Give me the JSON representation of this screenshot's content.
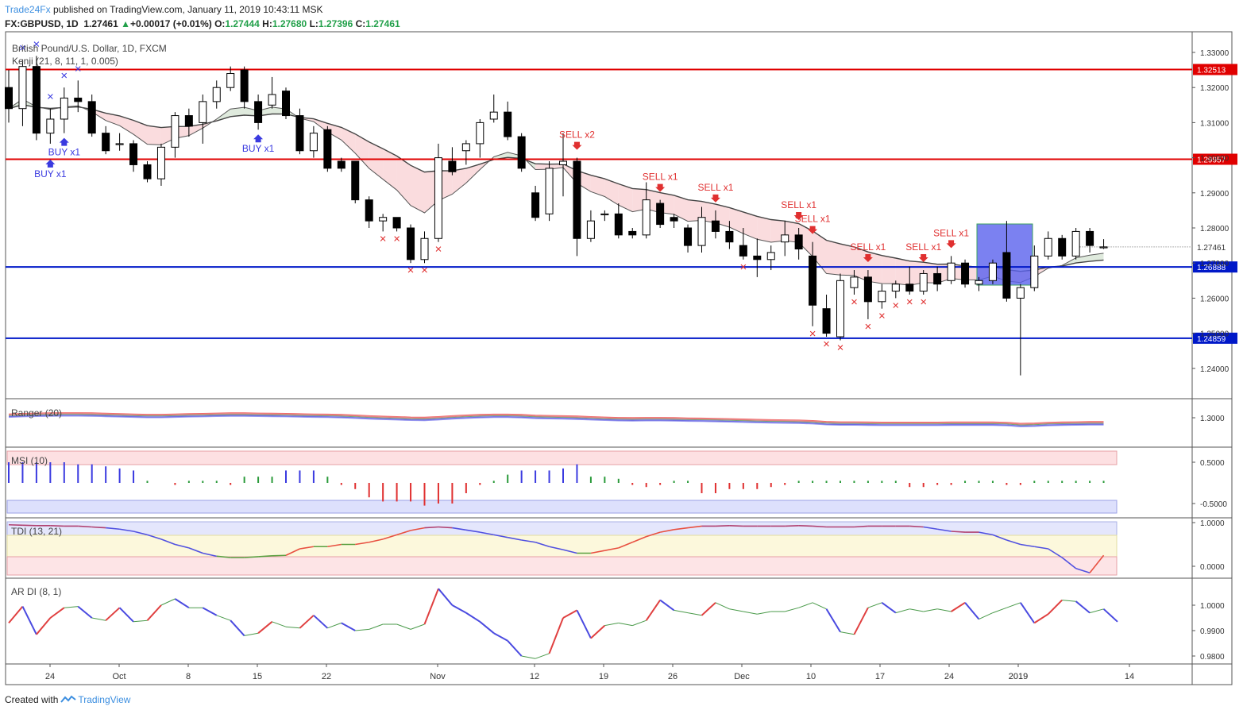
{
  "header": {
    "brand": "Trade24Fx",
    "published": "published on TradingView.com, January 11, 2019 10:43:11 MSK",
    "symbol": "FX:GBPUSD, 1D",
    "last": "1.27461",
    "arrow": "▲",
    "change": "+0.00017 (+0.01%)",
    "o_label": "O:",
    "o": "1.27444",
    "h_label": "H:",
    "h": "1.27680",
    "l_label": "L:",
    "l": "1.27396",
    "c_label": "C:",
    "c": "1.27461"
  },
  "footer": {
    "created_with": "Created with",
    "tradingview": "TradingView"
  },
  "colors": {
    "up": "#ffffff",
    "down": "#000000",
    "red_line": "#e00000",
    "blue_line": "#0018c8",
    "sell": "#e03030",
    "buy": "#3a3ae0"
  },
  "chart_data": [
    {
      "type": "candlestick",
      "title": "British Pound/U.S. Dollar, 1D, FXCM",
      "indicator": "Kenji (21, 8, 11, 1, 0.005)",
      "x_ticks": [
        "24",
        "Oct",
        "8",
        "15",
        "22",
        "Nov",
        "12",
        "19",
        "26",
        "Dec",
        "10",
        "17",
        "24",
        "2019",
        "14"
      ],
      "y_ticks": [
        "1.33000",
        "1.32000",
        "1.31000",
        "1.30000",
        "1.29000",
        "1.28000",
        "1.27000",
        "1.26000",
        "1.25000",
        "1.24000"
      ],
      "ylim": [
        1.2315,
        1.3355
      ],
      "horizontal_levels": [
        {
          "value": 1.32513,
          "label": "1.32513",
          "color": "red"
        },
        {
          "value": 1.29957,
          "label": "1.29957",
          "color": "red"
        },
        {
          "value": 1.26888,
          "label": "1.26888",
          "color": "blue"
        },
        {
          "value": 1.24859,
          "label": "1.24859",
          "color": "blue"
        }
      ],
      "last_price_label": "1.27461",
      "candles": [
        [
          1.32,
          1.325,
          1.31,
          1.314
        ],
        [
          1.314,
          1.328,
          1.309,
          1.326
        ],
        [
          1.326,
          1.329,
          1.305,
          1.307
        ],
        [
          1.307,
          1.314,
          1.304,
          1.311
        ],
        [
          1.311,
          1.32,
          1.307,
          1.317
        ],
        [
          1.317,
          1.322,
          1.313,
          1.316
        ],
        [
          1.316,
          1.318,
          1.306,
          1.307
        ],
        [
          1.307,
          1.309,
          1.301,
          1.302
        ],
        [
          1.304,
          1.307,
          1.302,
          1.304
        ],
        [
          1.304,
          1.305,
          1.296,
          1.298
        ],
        [
          1.298,
          1.299,
          1.293,
          1.294
        ],
        [
          1.294,
          1.304,
          1.292,
          1.303
        ],
        [
          1.303,
          1.313,
          1.3,
          1.312
        ],
        [
          1.312,
          1.314,
          1.306,
          1.309
        ],
        [
          1.31,
          1.318,
          1.304,
          1.316
        ],
        [
          1.316,
          1.322,
          1.314,
          1.32
        ],
        [
          1.32,
          1.326,
          1.319,
          1.324
        ],
        [
          1.325,
          1.326,
          1.314,
          1.316
        ],
        [
          1.316,
          1.318,
          1.308,
          1.31
        ],
        [
          1.315,
          1.323,
          1.314,
          1.318
        ],
        [
          1.319,
          1.32,
          1.311,
          1.312
        ],
        [
          1.312,
          1.314,
          1.301,
          1.302
        ],
        [
          1.302,
          1.309,
          1.3,
          1.307
        ],
        [
          1.308,
          1.309,
          1.296,
          1.297
        ],
        [
          1.299,
          1.3,
          1.296,
          1.297
        ],
        [
          1.299,
          1.299,
          1.287,
          1.288
        ],
        [
          1.288,
          1.289,
          1.28,
          1.282
        ],
        [
          1.282,
          1.284,
          1.279,
          1.283
        ],
        [
          1.283,
          1.283,
          1.279,
          1.28
        ],
        [
          1.28,
          1.281,
          1.27,
          1.271
        ],
        [
          1.271,
          1.279,
          1.27,
          1.277
        ],
        [
          1.277,
          1.304,
          1.276,
          1.3
        ],
        [
          1.299,
          1.303,
          1.295,
          1.296
        ],
        [
          1.302,
          1.305,
          1.298,
          1.304
        ],
        [
          1.304,
          1.311,
          1.3,
          1.31
        ],
        [
          1.311,
          1.318,
          1.31,
          1.313
        ],
        [
          1.313,
          1.316,
          1.305,
          1.306
        ],
        [
          1.306,
          1.307,
          1.296,
          1.297
        ],
        [
          1.29,
          1.292,
          1.282,
          1.283
        ],
        [
          1.284,
          1.299,
          1.282,
          1.297
        ],
        [
          1.298,
          1.307,
          1.289,
          1.299
        ],
        [
          1.299,
          1.3,
          1.272,
          1.277
        ],
        [
          1.277,
          1.285,
          1.276,
          1.282
        ],
        [
          1.284,
          1.285,
          1.282,
          1.284
        ],
        [
          1.284,
          1.287,
          1.277,
          1.278
        ],
        [
          1.279,
          1.28,
          1.277,
          1.278
        ],
        [
          1.278,
          1.293,
          1.277,
          1.288
        ],
        [
          1.287,
          1.288,
          1.28,
          1.281
        ],
        [
          1.283,
          1.284,
          1.28,
          1.282
        ],
        [
          1.28,
          1.281,
          1.273,
          1.275
        ],
        [
          1.275,
          1.286,
          1.273,
          1.283
        ],
        [
          1.282,
          1.285,
          1.277,
          1.279
        ],
        [
          1.279,
          1.282,
          1.274,
          1.276
        ],
        [
          1.275,
          1.28,
          1.271,
          1.272
        ],
        [
          1.272,
          1.277,
          1.266,
          1.271
        ],
        [
          1.271,
          1.275,
          1.268,
          1.273
        ],
        [
          1.276,
          1.282,
          1.272,
          1.278
        ],
        [
          1.278,
          1.28,
          1.271,
          1.274
        ],
        [
          1.272,
          1.276,
          1.252,
          1.258
        ],
        [
          1.257,
          1.261,
          1.249,
          1.25
        ],
        [
          1.249,
          1.267,
          1.248,
          1.265
        ],
        [
          1.263,
          1.268,
          1.261,
          1.266
        ],
        [
          1.266,
          1.268,
          1.254,
          1.259
        ],
        [
          1.259,
          1.264,
          1.257,
          1.262
        ],
        [
          1.262,
          1.265,
          1.26,
          1.264
        ],
        [
          1.264,
          1.269,
          1.261,
          1.262
        ],
        [
          1.262,
          1.268,
          1.261,
          1.267
        ],
        [
          1.267,
          1.269,
          1.262,
          1.264
        ],
        [
          1.265,
          1.272,
          1.264,
          1.27
        ],
        [
          1.27,
          1.271,
          1.263,
          1.264
        ],
        [
          1.264,
          1.266,
          1.262,
          1.265
        ],
        [
          1.265,
          1.271,
          1.264,
          1.27
        ],
        [
          1.273,
          1.282,
          1.259,
          1.26
        ],
        [
          1.26,
          1.264,
          1.238,
          1.263
        ],
        [
          1.263,
          1.275,
          1.262,
          1.272
        ],
        [
          1.272,
          1.279,
          1.271,
          1.277
        ],
        [
          1.277,
          1.278,
          1.271,
          1.272
        ],
        [
          1.272,
          1.28,
          1.271,
          1.279
        ],
        [
          1.279,
          1.28,
          1.273,
          1.275
        ],
        [
          1.2744,
          1.2768,
          1.274,
          1.2746
        ]
      ],
      "signals": [
        {
          "label": "SELL x2",
          "bar": 41
        },
        {
          "label": "SELL x1",
          "bar": 47
        },
        {
          "label": "SELL x1",
          "bar": 51
        },
        {
          "label": "SELL x1",
          "bar": 57
        },
        {
          "label": "SELL x1",
          "bar": 58
        },
        {
          "label": "SELL x1",
          "bar": 62
        },
        {
          "label": "SELL x1",
          "bar": 66
        },
        {
          "label": "SELL x1",
          "bar": 68
        },
        {
          "label": "BUY x1",
          "bar": 4
        },
        {
          "label": "BUY x1",
          "bar": 3
        },
        {
          "label": "BUY x1",
          "bar": 18
        }
      ]
    },
    {
      "type": "line",
      "indicator": "Ranger (20)",
      "y_ticks": [
        "1.3000"
      ],
      "series": [
        {
          "values": [
            1.305,
            1.3065,
            1.3075,
            1.308,
            1.3085,
            1.3085,
            1.308,
            1.307,
            1.306,
            1.305,
            1.304,
            1.304,
            1.305,
            1.306,
            1.3065,
            1.3075,
            1.308,
            1.308,
            1.3075,
            1.307,
            1.3065,
            1.3055,
            1.305,
            1.3045,
            1.3035,
            1.302,
            1.3,
            1.2985,
            1.2975,
            1.296,
            1.2955,
            1.2975,
            1.3,
            1.302,
            1.3035,
            1.3045,
            1.3045,
            1.3035,
            1.3015,
            1.3005,
            1.3,
            1.299,
            1.2975,
            1.296,
            1.295,
            1.2945,
            1.295,
            1.295,
            1.2945,
            1.2935,
            1.293,
            1.2925,
            1.2915,
            1.2905,
            1.2895,
            1.2885,
            1.288,
            1.2875,
            1.286,
            1.2835,
            1.2825,
            1.2825,
            1.282,
            1.2815,
            1.2815,
            1.2815,
            1.2815,
            1.2815,
            1.282,
            1.282,
            1.282,
            1.282,
            1.281,
            1.278,
            1.279,
            1.281,
            1.282,
            1.2825,
            1.283,
            1.283
          ]
        }
      ]
    },
    {
      "type": "bar",
      "indicator": "MSI (10)",
      "y_ticks": [
        "0.5000",
        "-0.5000"
      ],
      "ylim": [
        -0.8,
        0.8
      ],
      "values": [
        0.5,
        0.5,
        0.5,
        0.5,
        0.5,
        0.45,
        0.45,
        0.4,
        0.35,
        0.3,
        0.05,
        0,
        -0.05,
        0.05,
        0.05,
        0.05,
        -0.05,
        0.15,
        0.15,
        0.15,
        0.3,
        0.3,
        0.3,
        0.15,
        -0.05,
        -0.15,
        -0.35,
        -0.45,
        -0.45,
        -0.45,
        -0.55,
        -0.5,
        -0.5,
        -0.25,
        -0.05,
        0.05,
        0.2,
        0.3,
        0.3,
        0.3,
        0.35,
        0.45,
        0.15,
        0.15,
        0.1,
        -0.05,
        -0.1,
        -0.05,
        0.05,
        0.05,
        -0.25,
        -0.25,
        -0.15,
        -0.15,
        -0.15,
        -0.1,
        -0.05,
        0.05,
        0.05,
        0.05,
        0.05,
        0.05,
        0.05,
        0.05,
        0.05,
        -0.1,
        -0.1,
        -0.05,
        -0.05,
        0.05,
        0.05,
        0.05,
        -0.05,
        -0.05,
        0.05,
        0.05,
        0.05,
        0.05,
        0.05,
        0.05
      ]
    },
    {
      "type": "line",
      "indicator": "TDI (13, 21)",
      "y_ticks": [
        "1.0000",
        "0.0000"
      ],
      "ylim": [
        -0.2,
        1.05
      ],
      "series": [
        {
          "values": [
            0.95,
            0.94,
            0.93,
            0.93,
            0.92,
            0.92,
            0.9,
            0.88,
            0.85,
            0.8,
            0.72,
            0.62,
            0.5,
            0.42,
            0.3,
            0.23,
            0.2,
            0.2,
            0.22,
            0.24,
            0.25,
            0.4,
            0.45,
            0.45,
            0.5,
            0.5,
            0.55,
            0.62,
            0.72,
            0.82,
            0.88,
            0.9,
            0.88,
            0.83,
            0.78,
            0.72,
            0.66,
            0.6,
            0.55,
            0.45,
            0.38,
            0.3,
            0.3,
            0.36,
            0.42,
            0.55,
            0.68,
            0.78,
            0.84,
            0.88,
            0.92,
            0.92,
            0.93,
            0.92,
            0.92,
            0.92,
            0.92,
            0.93,
            0.92,
            0.9,
            0.9,
            0.9,
            0.92,
            0.92,
            0.92,
            0.92,
            0.9,
            0.85,
            0.8,
            0.78,
            0.78,
            0.72,
            0.6,
            0.5,
            0.45,
            0.4,
            0.2,
            -0.05,
            -0.15,
            0.25
          ]
        }
      ]
    },
    {
      "type": "line",
      "indicator": "AR DI (8, 1)",
      "y_ticks": [
        "1.0000",
        "0.9900",
        "0.9800"
      ],
      "ylim": [
        0.9775,
        1.007
      ],
      "series": [
        {
          "values": [
            0.993,
            0.9995,
            0.9885,
            0.995,
            0.999,
            0.9995,
            0.995,
            0.994,
            0.999,
            0.9935,
            0.994,
            1.0,
            1.0025,
            0.999,
            0.999,
            0.996,
            0.994,
            0.988,
            0.989,
            0.9935,
            0.9915,
            0.991,
            0.996,
            0.991,
            0.993,
            0.99,
            0.9905,
            0.9925,
            0.9925,
            0.9905,
            0.9925,
            1.0065,
            1.0,
            0.997,
            0.9935,
            0.989,
            0.986,
            0.98,
            0.979,
            0.981,
            0.995,
            0.998,
            0.987,
            0.992,
            0.993,
            0.992,
            0.994,
            1.002,
            0.998,
            0.997,
            0.996,
            1.001,
            0.9985,
            0.9975,
            0.9965,
            0.9975,
            0.9975,
            0.999,
            1.001,
            0.9985,
            0.9895,
            0.9885,
            0.999,
            1.001,
            0.997,
            0.9985,
            0.9975,
            0.9985,
            0.9975,
            1.001,
            0.9945,
            0.997,
            0.999,
            1.001,
            0.993,
            0.9965,
            1.002,
            1.0015,
            0.997,
            0.9985,
            0.9935
          ]
        }
      ]
    }
  ]
}
